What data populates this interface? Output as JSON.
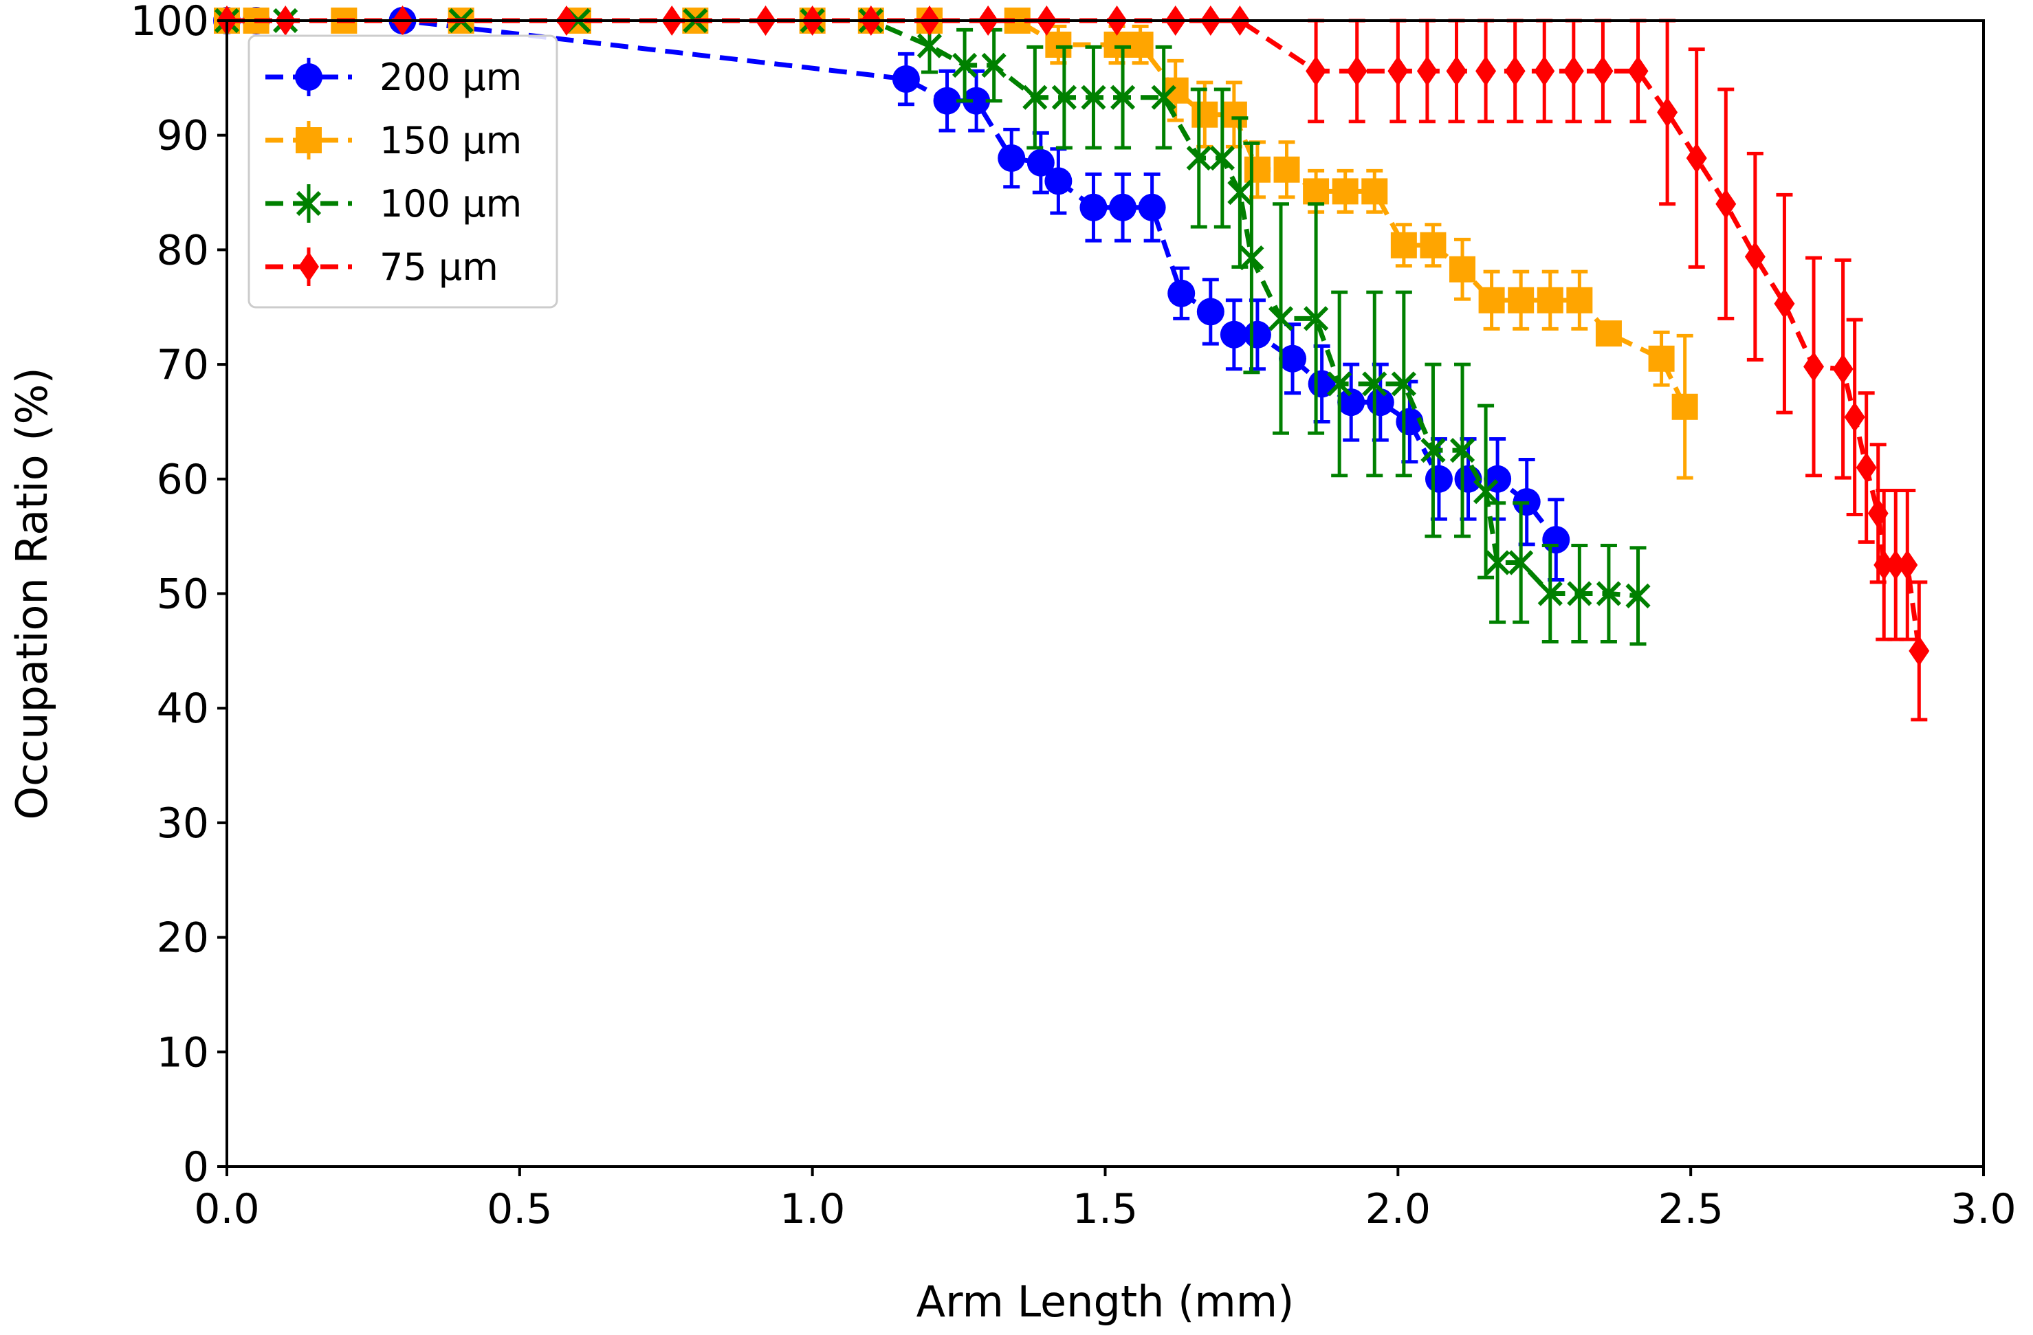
{
  "chart_data": {
    "type": "line",
    "title": "",
    "xlabel": "Arm Length (mm)",
    "ylabel": "Occupation Ratio (%)",
    "xlim": [
      0.0,
      3.0
    ],
    "ylim": [
      0,
      100
    ],
    "xticks": [
      "0.0",
      "0.5",
      "1.0",
      "1.5",
      "2.0",
      "2.5",
      "3.0"
    ],
    "yticks": [
      "0",
      "10",
      "20",
      "30",
      "40",
      "50",
      "60",
      "70",
      "80",
      "90",
      "100"
    ],
    "grid": false,
    "legend_position": "top-left",
    "error_bars": true,
    "series": [
      {
        "name": "200 μm",
        "color": "#0000ff",
        "marker": "circle",
        "x": [
          0.0,
          0.05,
          0.3,
          1.16,
          1.23,
          1.28,
          1.34,
          1.39,
          1.42,
          1.48,
          1.53,
          1.58,
          1.63,
          1.68,
          1.72,
          1.76,
          1.82,
          1.87,
          1.92,
          1.97,
          2.02,
          2.07,
          2.12,
          2.17,
          2.22,
          2.27
        ],
        "y": [
          100,
          100,
          100,
          94.9,
          93.0,
          93.0,
          88.0,
          87.6,
          86.0,
          83.7,
          83.7,
          83.7,
          76.2,
          74.6,
          72.6,
          72.6,
          70.5,
          68.3,
          66.7,
          66.7,
          65.0,
          60.0,
          60.0,
          60.0,
          58.0,
          54.7
        ],
        "err": [
          0,
          0,
          0,
          2.2,
          2.6,
          2.6,
          2.5,
          2.6,
          2.8,
          2.9,
          2.9,
          2.9,
          2.2,
          2.8,
          3.0,
          3.0,
          3.0,
          3.3,
          3.3,
          3.3,
          3.5,
          3.5,
          3.5,
          3.5,
          3.7,
          3.5
        ]
      },
      {
        "name": "150 μm",
        "color": "#ffa500",
        "marker": "square",
        "x": [
          0.0,
          0.05,
          0.2,
          0.4,
          0.6,
          0.8,
          1.0,
          1.1,
          1.2,
          1.35,
          1.42,
          1.52,
          1.56,
          1.62,
          1.67,
          1.72,
          1.76,
          1.81,
          1.86,
          1.91,
          1.96,
          2.01,
          2.06,
          2.11,
          2.16,
          2.21,
          2.26,
          2.31,
          2.36,
          2.45,
          2.49
        ],
        "y": [
          100,
          100,
          100,
          100,
          100,
          100,
          100,
          100,
          100,
          100,
          97.9,
          97.9,
          97.9,
          93.9,
          91.8,
          91.8,
          87.0,
          87.0,
          85.1,
          85.1,
          85.1,
          80.4,
          80.4,
          78.3,
          75.6,
          75.6,
          75.6,
          75.6,
          72.7,
          70.5,
          66.3
        ],
        "err": [
          0,
          0,
          0,
          0,
          0,
          0,
          0,
          0,
          0,
          0,
          1.6,
          1.6,
          1.6,
          2.6,
          2.8,
          2.8,
          2.4,
          2.4,
          1.8,
          1.8,
          1.8,
          1.8,
          1.8,
          2.6,
          2.5,
          2.5,
          2.5,
          2.5,
          0.8,
          2.3,
          6.2
        ]
      },
      {
        "name": "100 μm",
        "color": "#008000",
        "marker": "x",
        "x": [
          0.0,
          0.1,
          0.4,
          0.6,
          0.8,
          1.0,
          1.1,
          1.2,
          1.26,
          1.31,
          1.38,
          1.43,
          1.48,
          1.53,
          1.6,
          1.66,
          1.7,
          1.73,
          1.75,
          1.8,
          1.86,
          1.9,
          1.96,
          2.01,
          2.06,
          2.11,
          2.15,
          2.17,
          2.21,
          2.26,
          2.31,
          2.36,
          2.41
        ],
        "y": [
          100,
          100,
          100,
          100,
          100,
          100,
          100,
          97.8,
          96.1,
          96.1,
          93.3,
          93.3,
          93.3,
          93.3,
          93.3,
          88.0,
          88.0,
          85.0,
          79.3,
          74.0,
          74.0,
          68.3,
          68.3,
          68.3,
          62.5,
          62.5,
          58.9,
          52.7,
          52.7,
          50.0,
          50.0,
          50.0,
          49.8
        ],
        "err": [
          0,
          0,
          0,
          0,
          0,
          0,
          0,
          2.3,
          3.1,
          3.1,
          4.4,
          4.4,
          4.4,
          4.4,
          4.4,
          6.0,
          6.0,
          6.5,
          10.0,
          10.0,
          10.0,
          8.0,
          8.0,
          8.0,
          7.5,
          7.5,
          7.5,
          5.2,
          5.2,
          4.2,
          4.2,
          4.2,
          4.2
        ]
      },
      {
        "name": "75 μm",
        "color": "#ff0000",
        "marker": "diamond",
        "x": [
          0.0,
          0.1,
          0.3,
          0.58,
          0.76,
          0.92,
          1.0,
          1.1,
          1.2,
          1.3,
          1.4,
          1.52,
          1.62,
          1.68,
          1.73,
          1.86,
          1.93,
          2.0,
          2.05,
          2.1,
          2.15,
          2.2,
          2.25,
          2.3,
          2.35,
          2.41,
          2.46,
          2.51,
          2.56,
          2.61,
          2.66,
          2.71,
          2.76,
          2.78,
          2.8,
          2.82,
          2.83,
          2.85,
          2.87,
          2.89
        ],
        "y": [
          100,
          100,
          100,
          100,
          100,
          100,
          100,
          100,
          100,
          100,
          100,
          100,
          100,
          100,
          100,
          95.6,
          95.6,
          95.6,
          95.6,
          95.6,
          95.6,
          95.6,
          95.6,
          95.6,
          95.6,
          95.6,
          92.0,
          88.0,
          84.0,
          79.4,
          75.3,
          69.8,
          69.6,
          65.4,
          61.0,
          57.0,
          52.5,
          52.5,
          52.5,
          45.0
        ],
        "err": [
          0,
          0,
          0,
          0,
          0,
          0,
          0,
          0,
          0,
          0,
          0,
          0,
          0,
          0,
          0,
          4.4,
          4.4,
          4.4,
          4.4,
          4.4,
          4.4,
          4.4,
          4.4,
          4.4,
          4.4,
          4.4,
          8.0,
          9.5,
          10.0,
          9.0,
          9.5,
          9.5,
          9.5,
          8.5,
          6.5,
          6.0,
          6.5,
          6.5,
          6.5,
          6.0
        ]
      }
    ]
  }
}
